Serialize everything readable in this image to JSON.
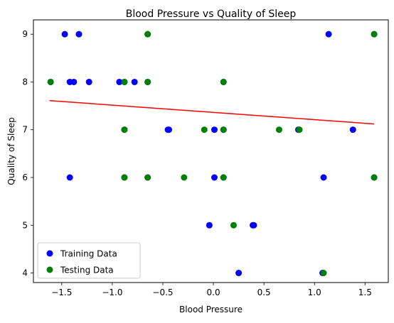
{
  "chart_data": {
    "type": "scatter",
    "title": "Blood Pressure vs Quality of Sleep",
    "xlabel": "Blood Pressure",
    "ylabel": "Quality of Sleep",
    "xlim": [
      -1.78,
      1.73
    ],
    "ylim": [
      3.8,
      9.3
    ],
    "xticks": [
      -1.5,
      -1.0,
      -0.5,
      0.0,
      0.5,
      1.0,
      1.5
    ],
    "xtick_labels": [
      "−1.5",
      "−1.0",
      "−0.5",
      "0.0",
      "0.5",
      "1.0",
      "1.5"
    ],
    "yticks": [
      4,
      5,
      6,
      7,
      8,
      9
    ],
    "ytick_labels": [
      "4",
      "5",
      "6",
      "7",
      "8",
      "9"
    ],
    "grid": false,
    "legend_position": "lower-left",
    "series": [
      {
        "name": "Training Data",
        "color": "#0000ff",
        "points": [
          [
            -1.47,
            9
          ],
          [
            -1.33,
            9
          ],
          [
            -0.65,
            9
          ],
          [
            1.14,
            9
          ],
          [
            1.59,
            9
          ],
          [
            -1.61,
            8
          ],
          [
            -1.42,
            8
          ],
          [
            -1.38,
            8
          ],
          [
            -1.23,
            8
          ],
          [
            -0.93,
            8
          ],
          [
            -0.88,
            8
          ],
          [
            -0.78,
            8
          ],
          [
            -0.65,
            8
          ],
          [
            0.1,
            8
          ],
          [
            -0.88,
            7
          ],
          [
            -0.45,
            7
          ],
          [
            -0.44,
            7
          ],
          [
            0.01,
            7
          ],
          [
            0.1,
            7
          ],
          [
            0.84,
            7
          ],
          [
            0.85,
            7
          ],
          [
            1.38,
            7
          ],
          [
            -1.42,
            6
          ],
          [
            -0.88,
            6
          ],
          [
            -0.65,
            6
          ],
          [
            0.01,
            6
          ],
          [
            0.1,
            6
          ],
          [
            1.09,
            6
          ],
          [
            1.59,
            6
          ],
          [
            -0.04,
            5
          ],
          [
            0.39,
            5
          ],
          [
            0.4,
            5
          ],
          [
            0.25,
            4
          ],
          [
            1.08,
            4
          ]
        ]
      },
      {
        "name": "Testing Data",
        "color": "#008000",
        "points": [
          [
            -0.65,
            9
          ],
          [
            1.59,
            9
          ],
          [
            -1.61,
            8
          ],
          [
            -0.88,
            8
          ],
          [
            -0.65,
            8
          ],
          [
            0.1,
            8
          ],
          [
            -0.88,
            7
          ],
          [
            -0.09,
            7
          ],
          [
            0.1,
            7
          ],
          [
            0.65,
            7
          ],
          [
            0.85,
            7
          ],
          [
            -0.88,
            6
          ],
          [
            -0.65,
            6
          ],
          [
            -0.29,
            6
          ],
          [
            0.1,
            6
          ],
          [
            1.59,
            6
          ],
          [
            0.2,
            5
          ],
          [
            1.09,
            4
          ]
        ]
      }
    ],
    "regression_line": {
      "color": "#ff0000",
      "points": [
        [
          -1.62,
          7.61
        ],
        [
          1.59,
          7.12
        ]
      ]
    }
  }
}
